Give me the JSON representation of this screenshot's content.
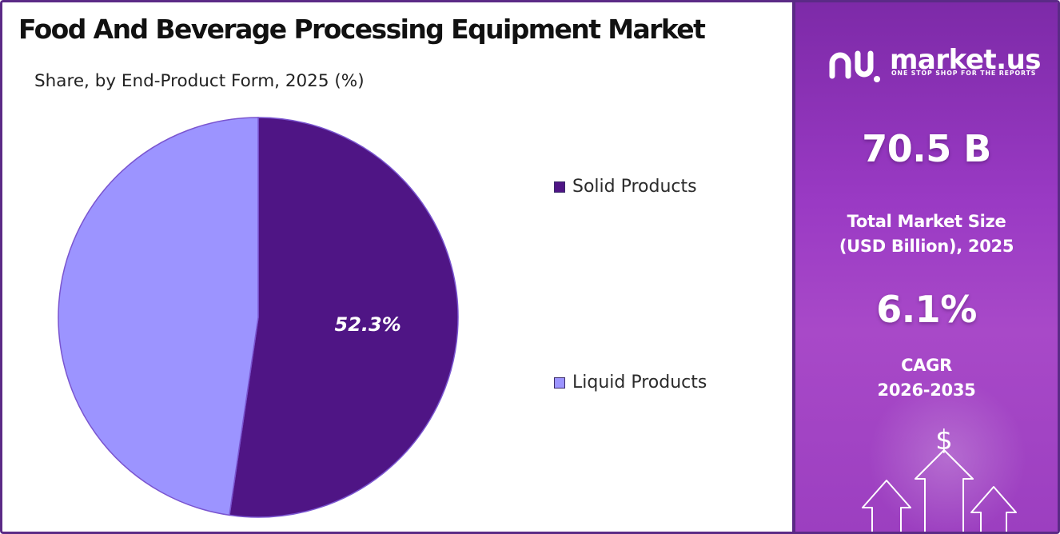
{
  "title": "Food And Beverage Processing Equipment Market",
  "subtitle": "Share, by End-Product Form, 2025 (%)",
  "chart_data": {
    "type": "pie",
    "categories": [
      "Solid Products",
      "Liquid Products"
    ],
    "values": [
      52.3,
      47.7
    ],
    "colors": [
      "#4f1585",
      "#9c94ff"
    ],
    "labels": [
      "52.3%",
      ""
    ],
    "legend_position": "right"
  },
  "sidebar": {
    "brand": "market.us",
    "tagline": "ONE STOP SHOP FOR THE REPORTS",
    "market_size_value": "70.5 B",
    "market_size_label_line1": "Total Market Size",
    "market_size_label_line2": "(USD Billion), 2025",
    "cagr_value": "6.1%",
    "cagr_label_line1": "CAGR",
    "cagr_label_line2": "2026-2035",
    "currency_symbol": "$",
    "logo_icon": "market-us-logo-icon",
    "decor_icon": "growth-arrows-icon"
  }
}
